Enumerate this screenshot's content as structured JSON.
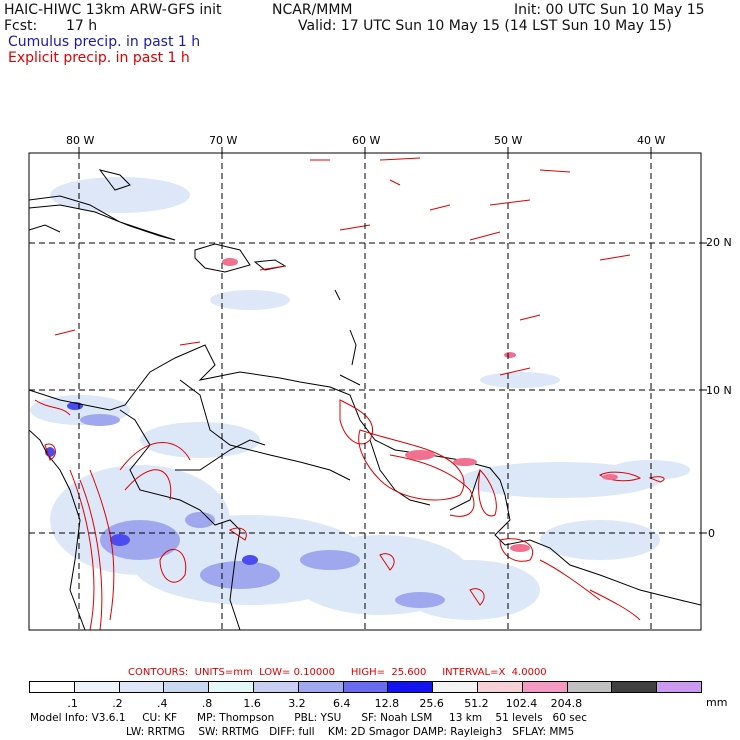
{
  "header": {
    "title_left": "HAIC-HIWC 13km ARW-GFS init",
    "source": "NCAR/MMM",
    "init": "Init: 00 UTC Sun 10 May 15",
    "fcst_label": "Fcst:",
    "fcst_value": "17 h",
    "valid": "Valid: 17 UTC Sun 10 May 15 (14 LST Sun 10 May 15)",
    "cumulus_label": "Cumulus precip. in past 1 h",
    "explicit_label": "Explicit precip. in past 1 h"
  },
  "axes": {
    "lon_labels": [
      "80 W",
      "70 W",
      "60 W",
      "50 W",
      "40 W"
    ],
    "lat_labels": [
      "20 N",
      "10 N",
      "0"
    ]
  },
  "legend": {
    "contours_label": "CONTOURS:  UNITS=mm  LOW= 0.10000     HIGH=  25.600     INTERVAL=X  4.0000",
    "unit": "mm",
    "colors": [
      "#ffffff",
      "#eef2fb",
      "#dde7f7",
      "#c9d9f2",
      "#e5f8f8",
      "#c8cff2",
      "#a0a8ee",
      "#6a6cf0",
      "#1414f0",
      "#f3f3f3",
      "#f6d0d6",
      "#f29ac2",
      "#c0c0c0",
      "#404040",
      "#cc99f0"
    ],
    "thresholds": [
      ".1",
      ".2",
      ".4",
      ".8",
      "1.6",
      "3.2",
      "6.4",
      "12.8",
      "25.6",
      "51.2",
      "102.4",
      "204.8"
    ]
  },
  "footer": {
    "line1": "Model Info: V3.6.1     CU: KF      MP: Thompson      PBL: YSU      SF: Noah LSM     13 km    51 levels   60 sec",
    "line2": "LW: RRTMG    SW: RRTMG   DIFF: full    KM: 2D Smagor DAMP: Rayleigh3   SFLAY: MM5"
  }
}
